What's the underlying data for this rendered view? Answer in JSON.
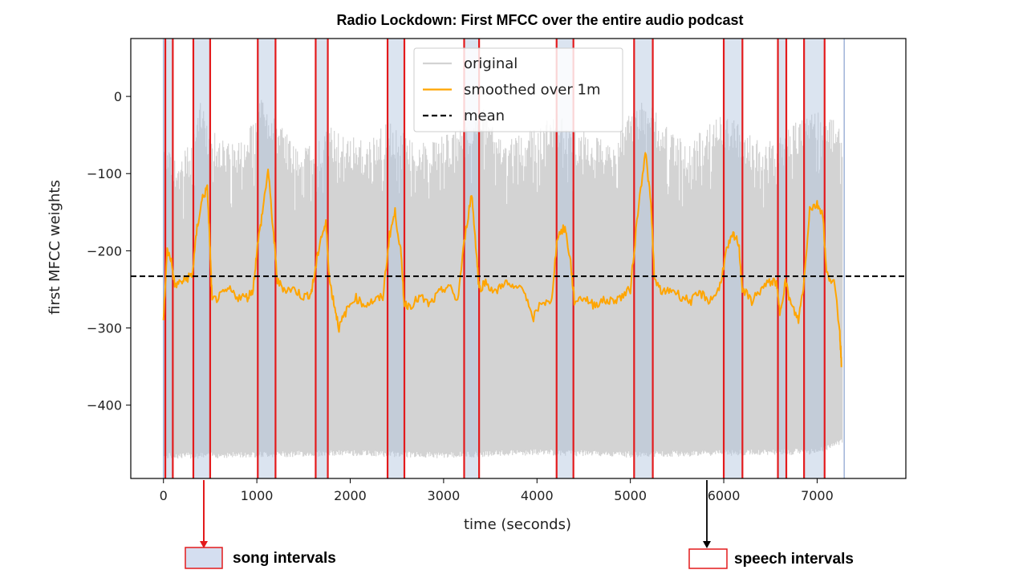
{
  "chart_data": {
    "type": "line",
    "title": "Radio Lockdown: First MFCC over the entire audio podcast",
    "xlabel": "time (seconds)",
    "ylabel": "first MFCC weights",
    "xlim": [
      -350,
      7950
    ],
    "ylim": [
      -495,
      75
    ],
    "xticks": [
      0,
      1000,
      2000,
      3000,
      4000,
      5000,
      6000,
      7000
    ],
    "yticks": [
      0,
      -100,
      -200,
      -300,
      -400
    ],
    "grid": false,
    "legend_placement": "top-center",
    "legend": [
      "original",
      "smoothed over 1m",
      "mean"
    ],
    "series": [
      {
        "name": "original",
        "color": "#d3d3d3",
        "x_range": [
          0,
          7270
        ],
        "envelope_top": [
          [
            0,
            -60
          ],
          [
            150,
            -80
          ],
          [
            300,
            -60
          ],
          [
            400,
            -5
          ],
          [
            500,
            -40
          ],
          [
            700,
            -60
          ],
          [
            900,
            -50
          ],
          [
            1050,
            0
          ],
          [
            1200,
            -30
          ],
          [
            1400,
            -60
          ],
          [
            1600,
            -60
          ],
          [
            1800,
            -40
          ],
          [
            2000,
            -50
          ],
          [
            2200,
            -60
          ],
          [
            2400,
            -30
          ],
          [
            2600,
            -50
          ],
          [
            2800,
            -60
          ],
          [
            3000,
            -50
          ],
          [
            3200,
            -40
          ],
          [
            3400,
            -10
          ],
          [
            3600,
            -50
          ],
          [
            3800,
            -50
          ],
          [
            4000,
            -40
          ],
          [
            4200,
            -20
          ],
          [
            4400,
            -40
          ],
          [
            4600,
            -50
          ],
          [
            4800,
            -60
          ],
          [
            5000,
            -20
          ],
          [
            5200,
            0
          ],
          [
            5400,
            -40
          ],
          [
            5600,
            -60
          ],
          [
            5800,
            -40
          ],
          [
            6000,
            -20
          ],
          [
            6200,
            -40
          ],
          [
            6400,
            -60
          ],
          [
            6600,
            -50
          ],
          [
            6800,
            -30
          ],
          [
            7000,
            -20
          ],
          [
            7200,
            -30
          ],
          [
            7270,
            -40
          ]
        ],
        "envelope_bottom": [
          [
            0,
            -470
          ],
          [
            1000,
            -468
          ],
          [
            2000,
            -466
          ],
          [
            3000,
            -469
          ],
          [
            4000,
            -465
          ],
          [
            5000,
            -468
          ],
          [
            6000,
            -466
          ],
          [
            7000,
            -464
          ],
          [
            7270,
            -450
          ]
        ]
      },
      {
        "name": "smoothed over 1m",
        "color": "#ffa500",
        "points": [
          [
            0,
            -290
          ],
          [
            40,
            -200
          ],
          [
            80,
            -210
          ],
          [
            120,
            -245
          ],
          [
            200,
            -240
          ],
          [
            260,
            -235
          ],
          [
            310,
            -230
          ],
          [
            360,
            -170
          ],
          [
            420,
            -130
          ],
          [
            470,
            -120
          ],
          [
            500,
            -200
          ],
          [
            520,
            -265
          ],
          [
            600,
            -260
          ],
          [
            700,
            -250
          ],
          [
            800,
            -260
          ],
          [
            900,
            -260
          ],
          [
            960,
            -250
          ],
          [
            1000,
            -200
          ],
          [
            1060,
            -150
          ],
          [
            1120,
            -95
          ],
          [
            1180,
            -180
          ],
          [
            1220,
            -240
          ],
          [
            1300,
            -250
          ],
          [
            1400,
            -250
          ],
          [
            1500,
            -260
          ],
          [
            1580,
            -255
          ],
          [
            1620,
            -230
          ],
          [
            1680,
            -185
          ],
          [
            1740,
            -165
          ],
          [
            1780,
            -240
          ],
          [
            1830,
            -270
          ],
          [
            1880,
            -300
          ],
          [
            1950,
            -280
          ],
          [
            2050,
            -260
          ],
          [
            2150,
            -270
          ],
          [
            2250,
            -265
          ],
          [
            2350,
            -260
          ],
          [
            2420,
            -180
          ],
          [
            2480,
            -150
          ],
          [
            2540,
            -200
          ],
          [
            2580,
            -270
          ],
          [
            2650,
            -270
          ],
          [
            2750,
            -260
          ],
          [
            2850,
            -270
          ],
          [
            2950,
            -255
          ],
          [
            3050,
            -245
          ],
          [
            3150,
            -265
          ],
          [
            3230,
            -180
          ],
          [
            3300,
            -125
          ],
          [
            3350,
            -200
          ],
          [
            3380,
            -250
          ],
          [
            3450,
            -240
          ],
          [
            3550,
            -255
          ],
          [
            3650,
            -240
          ],
          [
            3750,
            -250
          ],
          [
            3850,
            -245
          ],
          [
            3950,
            -290
          ],
          [
            4050,
            -265
          ],
          [
            4150,
            -270
          ],
          [
            4220,
            -180
          ],
          [
            4300,
            -170
          ],
          [
            4360,
            -215
          ],
          [
            4400,
            -265
          ],
          [
            4500,
            -260
          ],
          [
            4600,
            -270
          ],
          [
            4700,
            -265
          ],
          [
            4800,
            -265
          ],
          [
            4900,
            -260
          ],
          [
            5000,
            -250
          ],
          [
            5080,
            -150
          ],
          [
            5160,
            -70
          ],
          [
            5220,
            -140
          ],
          [
            5260,
            -240
          ],
          [
            5350,
            -255
          ],
          [
            5450,
            -250
          ],
          [
            5550,
            -260
          ],
          [
            5650,
            -265
          ],
          [
            5750,
            -255
          ],
          [
            5850,
            -265
          ],
          [
            5950,
            -250
          ],
          [
            6030,
            -200
          ],
          [
            6100,
            -180
          ],
          [
            6160,
            -190
          ],
          [
            6200,
            -250
          ],
          [
            6300,
            -265
          ],
          [
            6400,
            -250
          ],
          [
            6500,
            -240
          ],
          [
            6560,
            -240
          ],
          [
            6600,
            -280
          ],
          [
            6660,
            -240
          ],
          [
            6720,
            -270
          ],
          [
            6800,
            -290
          ],
          [
            6860,
            -240
          ],
          [
            6920,
            -145
          ],
          [
            7000,
            -140
          ],
          [
            7060,
            -150
          ],
          [
            7100,
            -230
          ],
          [
            7180,
            -240
          ],
          [
            7240,
            -300
          ],
          [
            7260,
            -345
          ]
        ]
      },
      {
        "name": "mean",
        "color": "#000000",
        "value": -233
      }
    ],
    "song_intervals": [
      [
        20,
        100
      ],
      [
        320,
        500
      ],
      [
        1010,
        1200
      ],
      [
        1630,
        1760
      ],
      [
        2400,
        2580
      ],
      [
        3220,
        3380
      ],
      [
        4210,
        4390
      ],
      [
        5040,
        5240
      ],
      [
        6000,
        6200
      ],
      [
        6580,
        6670
      ],
      [
        6860,
        7080
      ]
    ],
    "song_region_color": "#b0c4de",
    "speech_marker_color": "#e31a1c",
    "annotations": [
      {
        "label": "song intervals",
        "arrow_color": "#e31a1c",
        "box_fill": "#d4def0",
        "box_border": "#e31a1c",
        "points_to_x": 410
      },
      {
        "label": "speech intervals",
        "arrow_color": "#000000",
        "box_fill": "#ffffff",
        "box_border": "#e31a1c",
        "points_to_x": 5640
      }
    ]
  }
}
